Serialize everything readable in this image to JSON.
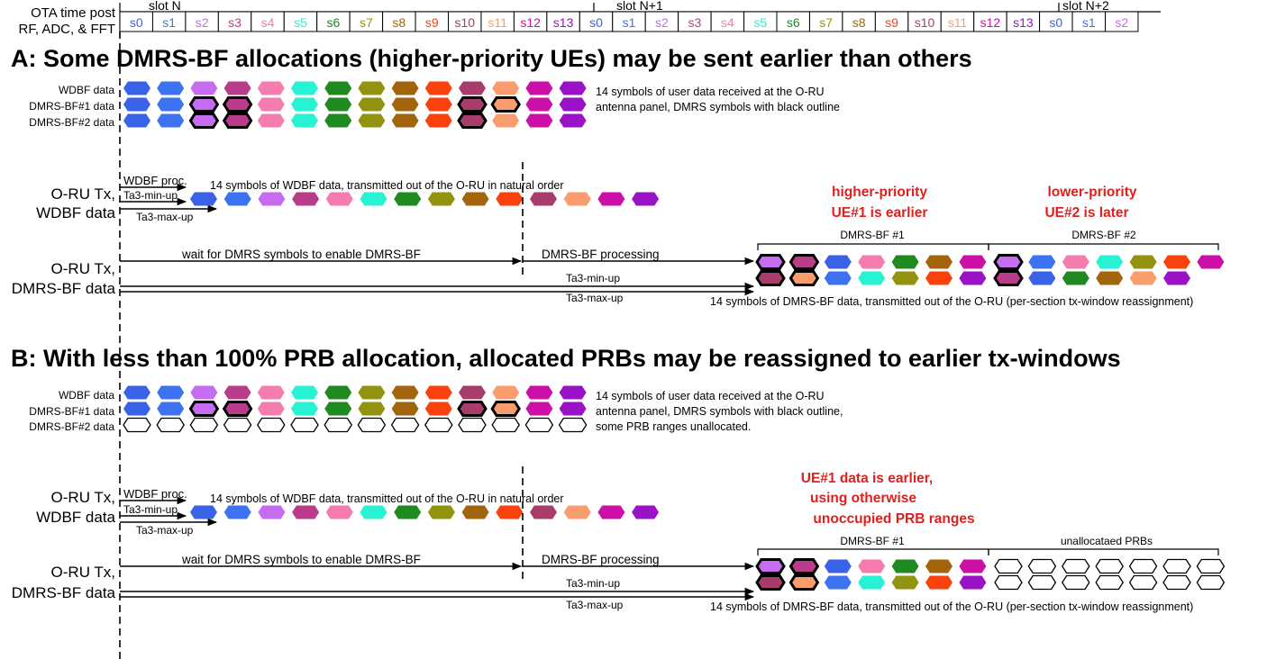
{
  "colors": {
    "s0": "#3a62e6",
    "s1": "#3d73f0",
    "s2": "#c56cf0",
    "s3": "#b83c8a",
    "s4": "#f57cae",
    "s5": "#27f2d3",
    "s6": "#1f8a1f",
    "s7": "#929410",
    "s8": "#a3650c",
    "s9": "#fa420f",
    "s10": "#a83c6b",
    "s11": "#f99d6f",
    "s12": "#cc10a7",
    "s13": "#9a12c6",
    "red": "#e0201c"
  },
  "timeline": {
    "row_label_1": "OTA time post",
    "row_label_2": "RF, ADC, & FFT",
    "slots": [
      "slot N",
      "slot N+1",
      "slot N+2"
    ],
    "symbols": [
      "s0",
      "s1",
      "s2",
      "s3",
      "s4",
      "s5",
      "s6",
      "s7",
      "s8",
      "s9",
      "s10",
      "s11",
      "s12",
      "s13",
      "s0",
      "s1",
      "s2",
      "s3",
      "s4",
      "s5",
      "s6",
      "s7",
      "s8",
      "s9",
      "s10",
      "s11",
      "s12",
      "s13",
      "s0",
      "s1",
      "s2"
    ],
    "symbol_colors": [
      "s0",
      "s1",
      "s2",
      "s3",
      "s4",
      "s5",
      "s6",
      "s7",
      "s8",
      "s9",
      "s10",
      "s11",
      "s12",
      "s13",
      "s0",
      "s1",
      "s2",
      "s3",
      "s4",
      "s5",
      "s6",
      "s7",
      "s8",
      "s9",
      "s10",
      "s11",
      "s12",
      "s13",
      "s0",
      "s1",
      "s2"
    ]
  },
  "section_a": {
    "title": "A: Some DMRS-BF allocations (higher-priority UEs) may be sent earlier than others",
    "rx_labels": [
      "WDBF data",
      "DMRS-BF#1 data",
      "DMRS-BF#2 data"
    ],
    "rx_note_1": "14 symbols of user data received at the O-RU",
    "rx_note_2": "antenna panel, DMRS symbols with black outline",
    "tx_wdbf_label_1": "O-RU Tx,",
    "tx_wdbf_label_2": "WDBF data",
    "wdbf_proc": "WDBF proc.",
    "ta3_min": "Ta3-min-up",
    "ta3_max": "Ta3-max-up",
    "wdbf_tx_note": "14 symbols of WDBF data, transmitted out of the O-RU in natural order",
    "red_note_1a": "higher-priority",
    "red_note_1b": "UE#1 is earlier",
    "red_note_2a": "lower-priority",
    "red_note_2b": "UE#2 is later",
    "tx_dmrs_label_1": "O-RU Tx,",
    "tx_dmrs_label_2": "DMRS-BF data",
    "wait_note": "wait for DMRS symbols to enable DMRS-BF",
    "dmrs_proc": "DMRS-BF processing",
    "ta3_min_long": "Ta3-min-up",
    "ta3_max_long": "Ta3-max-up",
    "brace_1": "DMRS-BF  #1",
    "brace_2": "DMRS-BF #2",
    "dmrs_tx_note": "14 symbols of DMRS-BF data, transmitted out of the O-RU (per-section tx-window reassignment)"
  },
  "section_b": {
    "title": "B: With less than 100% PRB allocation, allocated PRBs may be reassigned to earlier tx-windows",
    "rx_labels": [
      "WDBF data",
      "DMRS-BF#1 data",
      "DMRS-BF#2 data"
    ],
    "rx_note_1": "14 symbols of user data received at the O-RU",
    "rx_note_2": "antenna panel, DMRS symbols with black outline,",
    "rx_note_3": "some PRB ranges unallocated.",
    "tx_wdbf_label_1": "O-RU Tx,",
    "tx_wdbf_label_2": "WDBF data",
    "wdbf_proc": "WDBF proc.",
    "ta3_min": "Ta3-min-up",
    "ta3_max": "Ta3-max-up",
    "wdbf_tx_note": "14 symbols of WDBF data, transmitted out of the O-RU in natural order",
    "red_note_a": "UE#1 data is earlier,",
    "red_note_b": "using otherwise",
    "red_note_c": "unoccupied PRB ranges",
    "tx_dmrs_label_1": "O-RU Tx,",
    "tx_dmrs_label_2": "DMRS-BF data",
    "wait_note": "wait for DMRS symbols to enable DMRS-BF",
    "dmrs_proc": "DMRS-BF processing",
    "ta3_min_long": "Ta3-min-up",
    "ta3_max_long": "Ta3-max-up",
    "brace_1": "DMRS-BF  #1",
    "brace_2": "unallocataed PRBs",
    "dmrs_tx_note": "14 symbols of DMRS-BF data, transmitted out of the O-RU (per-section tx-window reassignment)"
  }
}
